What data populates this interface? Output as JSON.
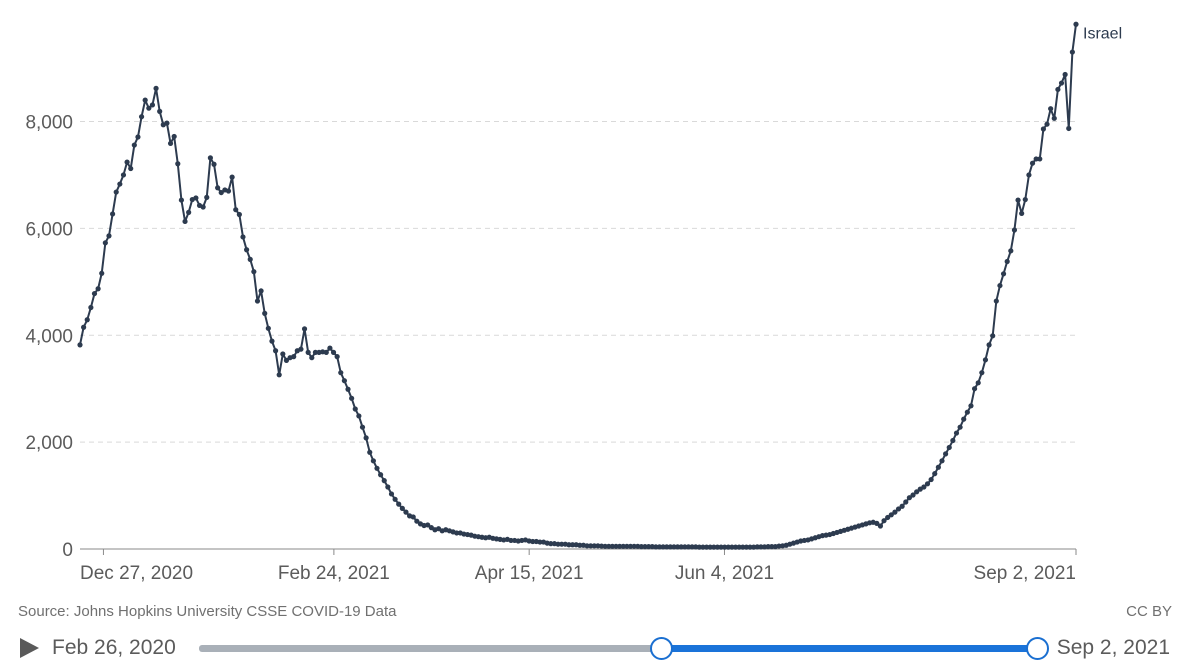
{
  "chart_data": {
    "type": "line",
    "x_start": "2020-12-21",
    "x_end": "2021-09-02",
    "x_ticks": [
      "Dec 27, 2020",
      "Feb 24, 2021",
      "Apr 15, 2021",
      "Jun 4, 2021",
      "Sep 2, 2021"
    ],
    "y_ticks": [
      "0",
      "2,000",
      "4,000",
      "6,000",
      "8,000"
    ],
    "ylim": [
      0,
      9900
    ],
    "grid": true,
    "series": [
      {
        "name": "Israel",
        "color": "#2d3b4f",
        "values": [
          3820,
          4150,
          4290,
          4520,
          4780,
          4870,
          5160,
          5730,
          5860,
          6270,
          6680,
          6830,
          7000,
          7240,
          7120,
          7560,
          7710,
          8090,
          8400,
          8250,
          8310,
          8620,
          8190,
          7940,
          7970,
          7590,
          7720,
          7210,
          6530,
          6130,
          6300,
          6540,
          6570,
          6430,
          6400,
          6580,
          7320,
          7200,
          6760,
          6670,
          6720,
          6700,
          6960,
          6350,
          6260,
          5840,
          5600,
          5420,
          5190,
          4640,
          4830,
          4410,
          4130,
          3890,
          3710,
          3260,
          3650,
          3530,
          3580,
          3600,
          3710,
          3740,
          4120,
          3680,
          3580,
          3680,
          3680,
          3690,
          3680,
          3760,
          3680,
          3600,
          3300,
          3150,
          2990,
          2820,
          2620,
          2490,
          2280,
          2080,
          1810,
          1650,
          1510,
          1390,
          1280,
          1160,
          1030,
          930,
          840,
          760,
          690,
          620,
          600,
          520,
          470,
          440,
          450,
          400,
          360,
          380,
          340,
          360,
          340,
          320,
          300,
          300,
          280,
          270,
          260,
          240,
          230,
          220,
          210,
          220,
          200,
          190,
          180,
          170,
          180,
          160,
          160,
          150,
          160,
          170,
          150,
          140,
          140,
          130,
          130,
          110,
          100,
          100,
          90,
          90,
          90,
          80,
          80,
          80,
          70,
          70,
          60,
          60,
          60,
          60,
          55,
          50,
          50,
          50,
          50,
          50,
          50,
          50,
          50,
          50,
          50,
          45,
          45,
          45,
          45,
          40,
          40,
          40,
          40,
          40,
          40,
          40,
          40,
          40,
          40,
          40,
          40,
          35,
          35,
          35,
          35,
          35,
          35,
          35,
          35,
          35,
          35,
          35,
          35,
          35,
          35,
          35,
          35,
          40,
          40,
          40,
          45,
          45,
          45,
          55,
          60,
          70,
          90,
          110,
          130,
          150,
          160,
          170,
          190,
          210,
          230,
          250,
          260,
          270,
          290,
          310,
          330,
          350,
          370,
          390,
          410,
          430,
          450,
          470,
          490,
          500,
          480,
          430,
          530,
          590,
          640,
          690,
          750,
          800,
          880,
          960,
          1010,
          1070,
          1120,
          1160,
          1220,
          1300,
          1410,
          1530,
          1650,
          1780,
          1900,
          2030,
          2170,
          2280,
          2430,
          2560,
          2680,
          3000,
          3110,
          3300,
          3540,
          3820,
          3990,
          4640,
          4930,
          5150,
          5380,
          5580,
          5970,
          6530,
          6280,
          6540,
          7000,
          7220,
          7300,
          7300,
          7860,
          7950,
          8240,
          8060,
          8600,
          8720,
          8880,
          7870,
          9300,
          9820
        ]
      }
    ]
  },
  "footer": {
    "source": "Source: Johns Hopkins University CSSE COVID-19 Data",
    "license": "CC BY"
  },
  "timeline": {
    "start_label": "Feb 26, 2020",
    "end_label": "Sep 2, 2021",
    "range_start_fraction": 0.551,
    "range_end_fraction": 1.0
  },
  "colors": {
    "line": "#2d3b4f",
    "grid": "#d9d9d9",
    "accent": "#1a73d9"
  }
}
